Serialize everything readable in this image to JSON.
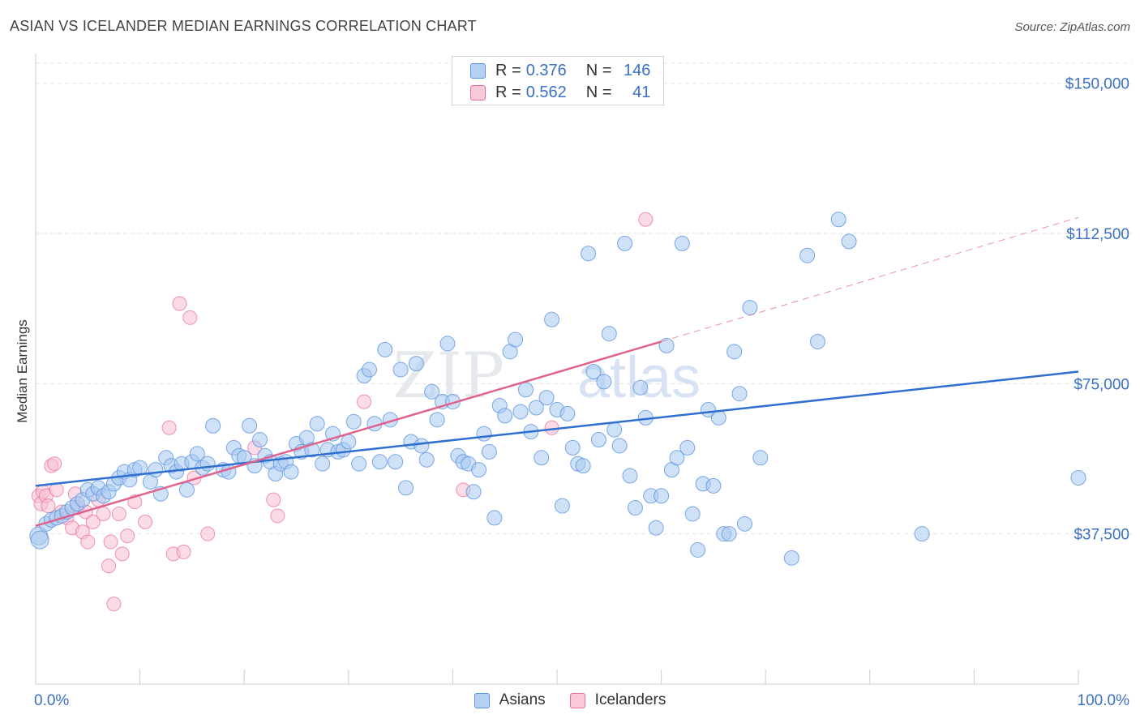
{
  "title": "ASIAN VS ICELANDER MEDIAN EARNINGS CORRELATION CHART",
  "source": "Source: ZipAtlas.com",
  "watermark": {
    "zip": "ZIP",
    "atlas": "atlas"
  },
  "colors": {
    "blue": "#5b93e0",
    "blue_fill": "#a8c8f0",
    "blue_line": "#2f6fd0",
    "pink": "#e8709a",
    "pink_fill": "#f7c0d2",
    "pink_line": "#e0628c",
    "axis_text": "#3a70c2",
    "grid": "#e3e3e3"
  },
  "legend_top": {
    "rows": [
      {
        "r_label": "R = ",
        "r_value": "0.376",
        "n_label": "N = ",
        "n_value": "146",
        "series": "Asians"
      },
      {
        "r_label": "R = ",
        "r_value": "0.562",
        "n_label": "N = ",
        "n_value": "41",
        "series": "Icelanders"
      }
    ]
  },
  "bottom_legend": [
    "Asians",
    "Icelanders"
  ],
  "chart_data": {
    "type": "scatter",
    "title": "ASIAN VS ICELANDER MEDIAN EARNINGS CORRELATION CHART",
    "xlabel": "",
    "ylabel": "Median Earnings",
    "xlim": [
      0,
      100
    ],
    "ylim": [
      0,
      155000
    ],
    "x_tick_labels": [
      "0.0%",
      "100.0%"
    ],
    "y_ticks": [
      37500,
      75000,
      112500,
      150000
    ],
    "y_tick_labels": [
      "$37,500",
      "$75,000",
      "$112,500",
      "$150,000"
    ],
    "grid": true,
    "legend_position": "top-center",
    "series": [
      {
        "name": "Asians",
        "r": 0.376,
        "n": 146,
        "trend": {
          "x": [
            0,
            100
          ],
          "y": [
            49500,
            78000
          ]
        },
        "points": [
          [
            0.3,
            37000
          ],
          [
            0.4,
            36000
          ],
          [
            1.0,
            40000
          ],
          [
            1.5,
            41000
          ],
          [
            2.0,
            41500
          ],
          [
            2.5,
            42000
          ],
          [
            3.0,
            43000
          ],
          [
            3.5,
            44000
          ],
          [
            4.0,
            45000
          ],
          [
            4.5,
            46000
          ],
          [
            5.0,
            48500
          ],
          [
            5.5,
            47500
          ],
          [
            6.0,
            49000
          ],
          [
            6.5,
            47000
          ],
          [
            7.0,
            48000
          ],
          [
            7.5,
            50000
          ],
          [
            8.0,
            51500
          ],
          [
            8.5,
            53000
          ],
          [
            9.0,
            51000
          ],
          [
            9.5,
            53500
          ],
          [
            10.0,
            54000
          ],
          [
            11.0,
            50500
          ],
          [
            11.5,
            53500
          ],
          [
            12.0,
            47500
          ],
          [
            12.5,
            56500
          ],
          [
            13.0,
            54500
          ],
          [
            13.5,
            53000
          ],
          [
            14.0,
            55000
          ],
          [
            14.5,
            48500
          ],
          [
            15.0,
            55500
          ],
          [
            15.5,
            57500
          ],
          [
            16.0,
            54000
          ],
          [
            16.5,
            55000
          ],
          [
            17.0,
            64500
          ],
          [
            18.0,
            53500
          ],
          [
            18.5,
            53000
          ],
          [
            19.0,
            59000
          ],
          [
            19.5,
            57000
          ],
          [
            20.0,
            56500
          ],
          [
            20.5,
            64500
          ],
          [
            21.0,
            54500
          ],
          [
            21.5,
            61000
          ],
          [
            22.0,
            57000
          ],
          [
            22.5,
            55500
          ],
          [
            23.0,
            52500
          ],
          [
            23.5,
            55000
          ],
          [
            24.0,
            55500
          ],
          [
            24.5,
            53000
          ],
          [
            25.0,
            60000
          ],
          [
            25.5,
            58000
          ],
          [
            26.0,
            61500
          ],
          [
            26.5,
            58500
          ],
          [
            27.0,
            65000
          ],
          [
            27.5,
            55000
          ],
          [
            28.0,
            58500
          ],
          [
            28.5,
            62500
          ],
          [
            29.0,
            58000
          ],
          [
            29.5,
            58500
          ],
          [
            30.0,
            60500
          ],
          [
            30.5,
            65500
          ],
          [
            31.0,
            55000
          ],
          [
            31.5,
            77000
          ],
          [
            32.0,
            78500
          ],
          [
            32.5,
            65000
          ],
          [
            33.0,
            55500
          ],
          [
            33.5,
            83500
          ],
          [
            34.0,
            66000
          ],
          [
            34.5,
            55500
          ],
          [
            35.0,
            78500
          ],
          [
            35.5,
            49000
          ],
          [
            36.0,
            60500
          ],
          [
            36.5,
            80000
          ],
          [
            37.0,
            59500
          ],
          [
            37.5,
            56000
          ],
          [
            38.0,
            73000
          ],
          [
            38.5,
            66000
          ],
          [
            39.0,
            70500
          ],
          [
            39.5,
            85000
          ],
          [
            40.0,
            70500
          ],
          [
            40.5,
            57000
          ],
          [
            41.0,
            55500
          ],
          [
            41.5,
            55000
          ],
          [
            42.0,
            48000
          ],
          [
            42.5,
            53500
          ],
          [
            43.0,
            62500
          ],
          [
            43.5,
            58000
          ],
          [
            44.0,
            41500
          ],
          [
            44.5,
            69500
          ],
          [
            45.0,
            67000
          ],
          [
            45.5,
            83000
          ],
          [
            46.0,
            86000
          ],
          [
            46.5,
            68000
          ],
          [
            47.0,
            73500
          ],
          [
            47.5,
            63000
          ],
          [
            48.0,
            69000
          ],
          [
            48.5,
            56500
          ],
          [
            49.0,
            71500
          ],
          [
            49.5,
            91000
          ],
          [
            50.0,
            68500
          ],
          [
            50.5,
            44500
          ],
          [
            51.0,
            67500
          ],
          [
            51.5,
            59000
          ],
          [
            52.0,
            55000
          ],
          [
            52.5,
            54500
          ],
          [
            53.0,
            107500
          ],
          [
            53.5,
            78000
          ],
          [
            54.0,
            61000
          ],
          [
            54.5,
            75500
          ],
          [
            55.0,
            87500
          ],
          [
            55.5,
            63500
          ],
          [
            56.0,
            59500
          ],
          [
            56.5,
            110000
          ],
          [
            57.0,
            52000
          ],
          [
            57.5,
            44000
          ],
          [
            58.0,
            74000
          ],
          [
            58.5,
            66500
          ],
          [
            59.0,
            47000
          ],
          [
            59.5,
            39000
          ],
          [
            60.0,
            47000
          ],
          [
            60.5,
            84500
          ],
          [
            61.0,
            53500
          ],
          [
            61.5,
            56500
          ],
          [
            62.0,
            110000
          ],
          [
            62.5,
            59000
          ],
          [
            63.0,
            42500
          ],
          [
            63.5,
            33500
          ],
          [
            64.0,
            50000
          ],
          [
            64.5,
            68500
          ],
          [
            65.0,
            49500
          ],
          [
            65.5,
            66500
          ],
          [
            66.0,
            37500
          ],
          [
            66.5,
            37500
          ],
          [
            67.0,
            83000
          ],
          [
            67.5,
            72500
          ],
          [
            68.0,
            40000
          ],
          [
            68.5,
            94000
          ],
          [
            69.5,
            56500
          ],
          [
            72.5,
            31500
          ],
          [
            74.0,
            107000
          ],
          [
            75.0,
            85500
          ],
          [
            77.0,
            116000
          ],
          [
            78.0,
            110500
          ],
          [
            85.0,
            37500
          ],
          [
            100.0,
            51500
          ]
        ]
      },
      {
        "name": "Icelanders",
        "r": 0.562,
        "n": 41,
        "trend": {
          "x": [
            0,
            60
          ],
          "y": [
            39500,
            85500
          ]
        },
        "trend_extension": {
          "x": [
            60,
            100
          ],
          "y": [
            85500,
            116500
          ]
        },
        "points": [
          [
            0.3,
            47000
          ],
          [
            0.5,
            45000
          ],
          [
            0.7,
            48000
          ],
          [
            1.0,
            47000
          ],
          [
            1.2,
            44500
          ],
          [
            1.5,
            54500
          ],
          [
            1.8,
            55000
          ],
          [
            2.0,
            48500
          ],
          [
            2.5,
            43000
          ],
          [
            3.0,
            41500
          ],
          [
            3.5,
            39000
          ],
          [
            3.8,
            47500
          ],
          [
            4.0,
            44000
          ],
          [
            4.5,
            38000
          ],
          [
            4.8,
            43000
          ],
          [
            5.0,
            35500
          ],
          [
            5.5,
            40500
          ],
          [
            6.0,
            46000
          ],
          [
            6.5,
            42500
          ],
          [
            7.0,
            29500
          ],
          [
            7.2,
            35500
          ],
          [
            7.5,
            20000
          ],
          [
            8.0,
            42500
          ],
          [
            8.3,
            32500
          ],
          [
            8.8,
            37000
          ],
          [
            9.5,
            45500
          ],
          [
            10.5,
            40500
          ],
          [
            12.8,
            64000
          ],
          [
            13.2,
            32500
          ],
          [
            13.8,
            95000
          ],
          [
            14.2,
            33000
          ],
          [
            14.8,
            91500
          ],
          [
            15.2,
            51500
          ],
          [
            16.5,
            37500
          ],
          [
            21.0,
            59000
          ],
          [
            22.8,
            46000
          ],
          [
            23.2,
            42000
          ],
          [
            31.5,
            70500
          ],
          [
            41.0,
            48500
          ],
          [
            49.5,
            64000
          ],
          [
            58.5,
            116000
          ]
        ]
      }
    ]
  }
}
